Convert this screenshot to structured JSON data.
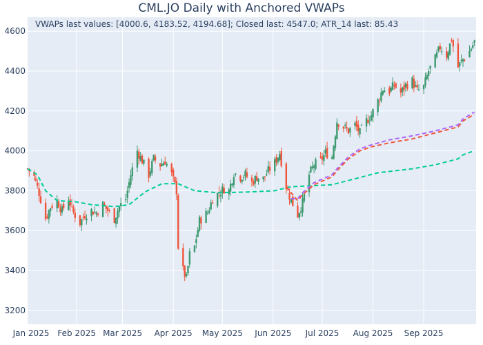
{
  "chart_data": {
    "type": "candlestick",
    "title": "CML.JO Daily with Anchored VWAPs",
    "annotation": "VWAPs last values: [4000.6, 4183.52, 4194.68]; Closed last: 4547.0; ATR_14 last: 85.43",
    "xlabel": "",
    "ylabel": "",
    "ylim": [
      3130,
      4670
    ],
    "xlim": [
      "2025-01-02",
      "2025-10-03"
    ],
    "x_ticks": [
      {
        "date": "2025-01-01",
        "label": "Jan 2025"
      },
      {
        "date": "2025-02-01",
        "label": "Feb 2025"
      },
      {
        "date": "2025-03-01",
        "label": "Mar 2025"
      },
      {
        "date": "2025-04-01",
        "label": "Apr 2025"
      },
      {
        "date": "2025-05-01",
        "label": "May 2025"
      },
      {
        "date": "2025-06-01",
        "label": "Jun 2025"
      },
      {
        "date": "2025-07-01",
        "label": "Jul 2025"
      },
      {
        "date": "2025-08-01",
        "label": "Aug 2025"
      },
      {
        "date": "2025-09-01",
        "label": "Sep 2025"
      }
    ],
    "y_ticks": [
      3200,
      3400,
      3600,
      3800,
      4000,
      4200,
      4400,
      4600
    ],
    "grid": true,
    "legend": "none",
    "colors": {
      "up": "#3d9970",
      "down": "#ef553b",
      "vwap1": "#00cc96",
      "vwap2": "#ef553b",
      "vwap3": "#ab63fa"
    },
    "close_path": [
      [
        "2025-01-02",
        3910
      ],
      [
        "2025-01-06",
        3870
      ],
      [
        "2025-01-09",
        3790
      ],
      [
        "2025-01-13",
        3660
      ],
      [
        "2025-01-16",
        3720
      ],
      [
        "2025-01-20",
        3750
      ],
      [
        "2025-01-23",
        3700
      ],
      [
        "2025-01-27",
        3760
      ],
      [
        "2025-01-30",
        3690
      ],
      [
        "2025-02-03",
        3640
      ],
      [
        "2025-02-06",
        3680
      ],
      [
        "2025-02-10",
        3700
      ],
      [
        "2025-02-13",
        3690
      ],
      [
        "2025-02-17",
        3730
      ],
      [
        "2025-02-20",
        3700
      ],
      [
        "2025-02-24",
        3660
      ],
      [
        "2025-02-27",
        3720
      ],
      [
        "2025-03-03",
        3760
      ],
      [
        "2025-03-06",
        3880
      ],
      [
        "2025-03-10",
        4000
      ],
      [
        "2025-03-13",
        3950
      ],
      [
        "2025-03-17",
        3880
      ],
      [
        "2025-03-20",
        3960
      ],
      [
        "2025-03-24",
        3930
      ],
      [
        "2025-03-27",
        3950
      ],
      [
        "2025-03-31",
        3880
      ],
      [
        "2025-04-03",
        3800
      ],
      [
        "2025-04-04",
        3520
      ],
      [
        "2025-04-07",
        3400
      ],
      [
        "2025-04-09",
        3360
      ],
      [
        "2025-04-11",
        3480
      ],
      [
        "2025-04-14",
        3520
      ],
      [
        "2025-04-17",
        3650
      ],
      [
        "2025-04-22",
        3690
      ],
      [
        "2025-04-25",
        3760
      ],
      [
        "2025-04-29",
        3790
      ],
      [
        "2025-05-02",
        3810
      ],
      [
        "2025-05-05",
        3800
      ],
      [
        "2025-05-08",
        3890
      ],
      [
        "2025-05-12",
        3870
      ],
      [
        "2025-05-15",
        3880
      ],
      [
        "2025-05-19",
        3840
      ],
      [
        "2025-05-22",
        3870
      ],
      [
        "2025-05-26",
        3860
      ],
      [
        "2025-05-29",
        3900
      ],
      [
        "2025-06-02",
        3940
      ],
      [
        "2025-06-05",
        3990
      ],
      [
        "2025-06-09",
        3820
      ],
      [
        "2025-06-12",
        3750
      ],
      [
        "2025-06-16",
        3680
      ],
      [
        "2025-06-19",
        3740
      ],
      [
        "2025-06-23",
        3880
      ],
      [
        "2025-06-26",
        3930
      ],
      [
        "2025-06-30",
        3950
      ],
      [
        "2025-07-03",
        3990
      ],
      [
        "2025-07-07",
        3970
      ],
      [
        "2025-07-10",
        4150
      ],
      [
        "2025-07-14",
        4120
      ],
      [
        "2025-07-17",
        4100
      ],
      [
        "2025-07-21",
        4130
      ],
      [
        "2025-07-24",
        4090
      ],
      [
        "2025-07-28",
        4150
      ],
      [
        "2025-07-31",
        4180
      ],
      [
        "2025-08-04",
        4250
      ],
      [
        "2025-08-07",
        4310
      ],
      [
        "2025-08-11",
        4300
      ],
      [
        "2025-08-14",
        4330
      ],
      [
        "2025-08-18",
        4290
      ],
      [
        "2025-08-21",
        4330
      ],
      [
        "2025-08-25",
        4350
      ],
      [
        "2025-08-28",
        4300
      ],
      [
        "2025-09-01",
        4320
      ],
      [
        "2025-09-04",
        4400
      ],
      [
        "2025-09-08",
        4460
      ],
      [
        "2025-09-11",
        4520
      ],
      [
        "2025-09-15",
        4480
      ],
      [
        "2025-09-18",
        4560
      ],
      [
        "2025-09-22",
        4420
      ],
      [
        "2025-09-25",
        4460
      ],
      [
        "2025-09-29",
        4500
      ],
      [
        "2025-10-02",
        4547
      ]
    ],
    "vwaps": [
      {
        "color": "#00cc96",
        "points": [
          [
            "2025-01-02",
            3910
          ],
          [
            "2025-01-08",
            3880
          ],
          [
            "2025-01-13",
            3800
          ],
          [
            "2025-01-20",
            3750
          ],
          [
            "2025-01-31",
            3745
          ],
          [
            "2025-02-10",
            3730
          ],
          [
            "2025-02-24",
            3720
          ],
          [
            "2025-03-05",
            3730
          ],
          [
            "2025-03-15",
            3795
          ],
          [
            "2025-03-25",
            3835
          ],
          [
            "2025-04-04",
            3835
          ],
          [
            "2025-04-14",
            3800
          ],
          [
            "2025-04-28",
            3790
          ],
          [
            "2025-05-15",
            3793
          ],
          [
            "2025-06-02",
            3800
          ],
          [
            "2025-06-12",
            3820
          ],
          [
            "2025-06-25",
            3825
          ],
          [
            "2025-07-07",
            3830
          ],
          [
            "2025-07-21",
            3860
          ],
          [
            "2025-08-04",
            3890
          ],
          [
            "2025-08-25",
            3910
          ],
          [
            "2025-09-08",
            3930
          ],
          [
            "2025-09-22",
            3960
          ],
          [
            "2025-09-25",
            3980
          ],
          [
            "2025-10-02",
            4000.6
          ]
        ]
      },
      {
        "color": "#ef553b",
        "points": [
          [
            "2025-06-09",
            3820
          ],
          [
            "2025-06-12",
            3790
          ],
          [
            "2025-06-16",
            3750
          ],
          [
            "2025-06-19",
            3780
          ],
          [
            "2025-06-26",
            3830
          ],
          [
            "2025-07-07",
            3870
          ],
          [
            "2025-07-10",
            3900
          ],
          [
            "2025-07-17",
            3960
          ],
          [
            "2025-07-24",
            4000
          ],
          [
            "2025-07-31",
            4020
          ],
          [
            "2025-08-11",
            4040
          ],
          [
            "2025-08-25",
            4060
          ],
          [
            "2025-09-08",
            4090
          ],
          [
            "2025-09-22",
            4120
          ],
          [
            "2025-09-25",
            4150
          ],
          [
            "2025-10-02",
            4183.52
          ]
        ]
      },
      {
        "color": "#ab63fa",
        "points": [
          [
            "2025-06-12",
            3760
          ],
          [
            "2025-06-16",
            3760
          ],
          [
            "2025-06-19",
            3790
          ],
          [
            "2025-06-26",
            3840
          ],
          [
            "2025-07-07",
            3880
          ],
          [
            "2025-07-10",
            3910
          ],
          [
            "2025-07-17",
            3970
          ],
          [
            "2025-07-24",
            4010
          ],
          [
            "2025-07-31",
            4030
          ],
          [
            "2025-08-11",
            4055
          ],
          [
            "2025-08-25",
            4075
          ],
          [
            "2025-09-08",
            4100
          ],
          [
            "2025-09-22",
            4130
          ],
          [
            "2025-09-25",
            4160
          ],
          [
            "2025-10-02",
            4194.68
          ]
        ]
      }
    ]
  }
}
